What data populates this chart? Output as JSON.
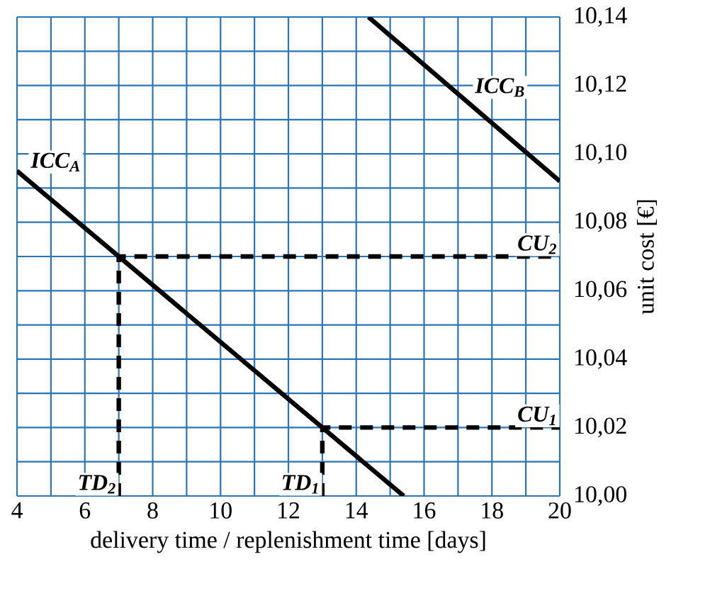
{
  "chart_data": {
    "type": "line",
    "xlabel": "delivery time / replenishment time  [days]",
    "ylabel": "unit cost [€]",
    "xlim": [
      4,
      20
    ],
    "ylim": [
      10.0,
      10.14
    ],
    "xticks": [
      4,
      6,
      8,
      10,
      12,
      14,
      16,
      18,
      20
    ],
    "yticks": [
      {
        "value": 10.0,
        "label": "10,00"
      },
      {
        "value": 10.02,
        "label": "10,02"
      },
      {
        "value": 10.04,
        "label": "10,04"
      },
      {
        "value": 10.06,
        "label": "10,06"
      },
      {
        "value": 10.08,
        "label": "10,08"
      },
      {
        "value": 10.1,
        "label": "10,10"
      },
      {
        "value": 10.12,
        "label": "10,12"
      },
      {
        "value": 10.14,
        "label": "10,14"
      }
    ],
    "grid": true,
    "marker": "none",
    "series": [
      {
        "name": "ICC$_{A}$",
        "color": "#000000",
        "x": [
          4,
          15.4
        ],
        "values": [
          10.095,
          10.0
        ]
      },
      {
        "name": "ICC$_{B}$",
        "color": "#000000",
        "x": [
          14.36,
          20
        ],
        "values": [
          10.14,
          10.092
        ]
      },
      {
        "color": "#000000",
        "line_style": "dashed",
        "x": [
          7,
          7,
          20
        ],
        "values": [
          10.0,
          10.07,
          10.07
        ]
      },
      {
        "color": "#000000",
        "line_style": "dashed",
        "x": [
          13,
          13,
          20
        ],
        "values": [
          10.0,
          10.02,
          10.02
        ]
      }
    ],
    "annotations": [
      {
        "text": "CU$_{2}$",
        "x": 20,
        "y": 10.07
      },
      {
        "text": "TD$_{2}$",
        "x": 7,
        "y": 10.0
      },
      {
        "text": "CU$_{1}$",
        "x": 20,
        "y": 10.02
      },
      {
        "text": "TD$_{1}$",
        "x": 13,
        "y": 10.0
      }
    ]
  }
}
